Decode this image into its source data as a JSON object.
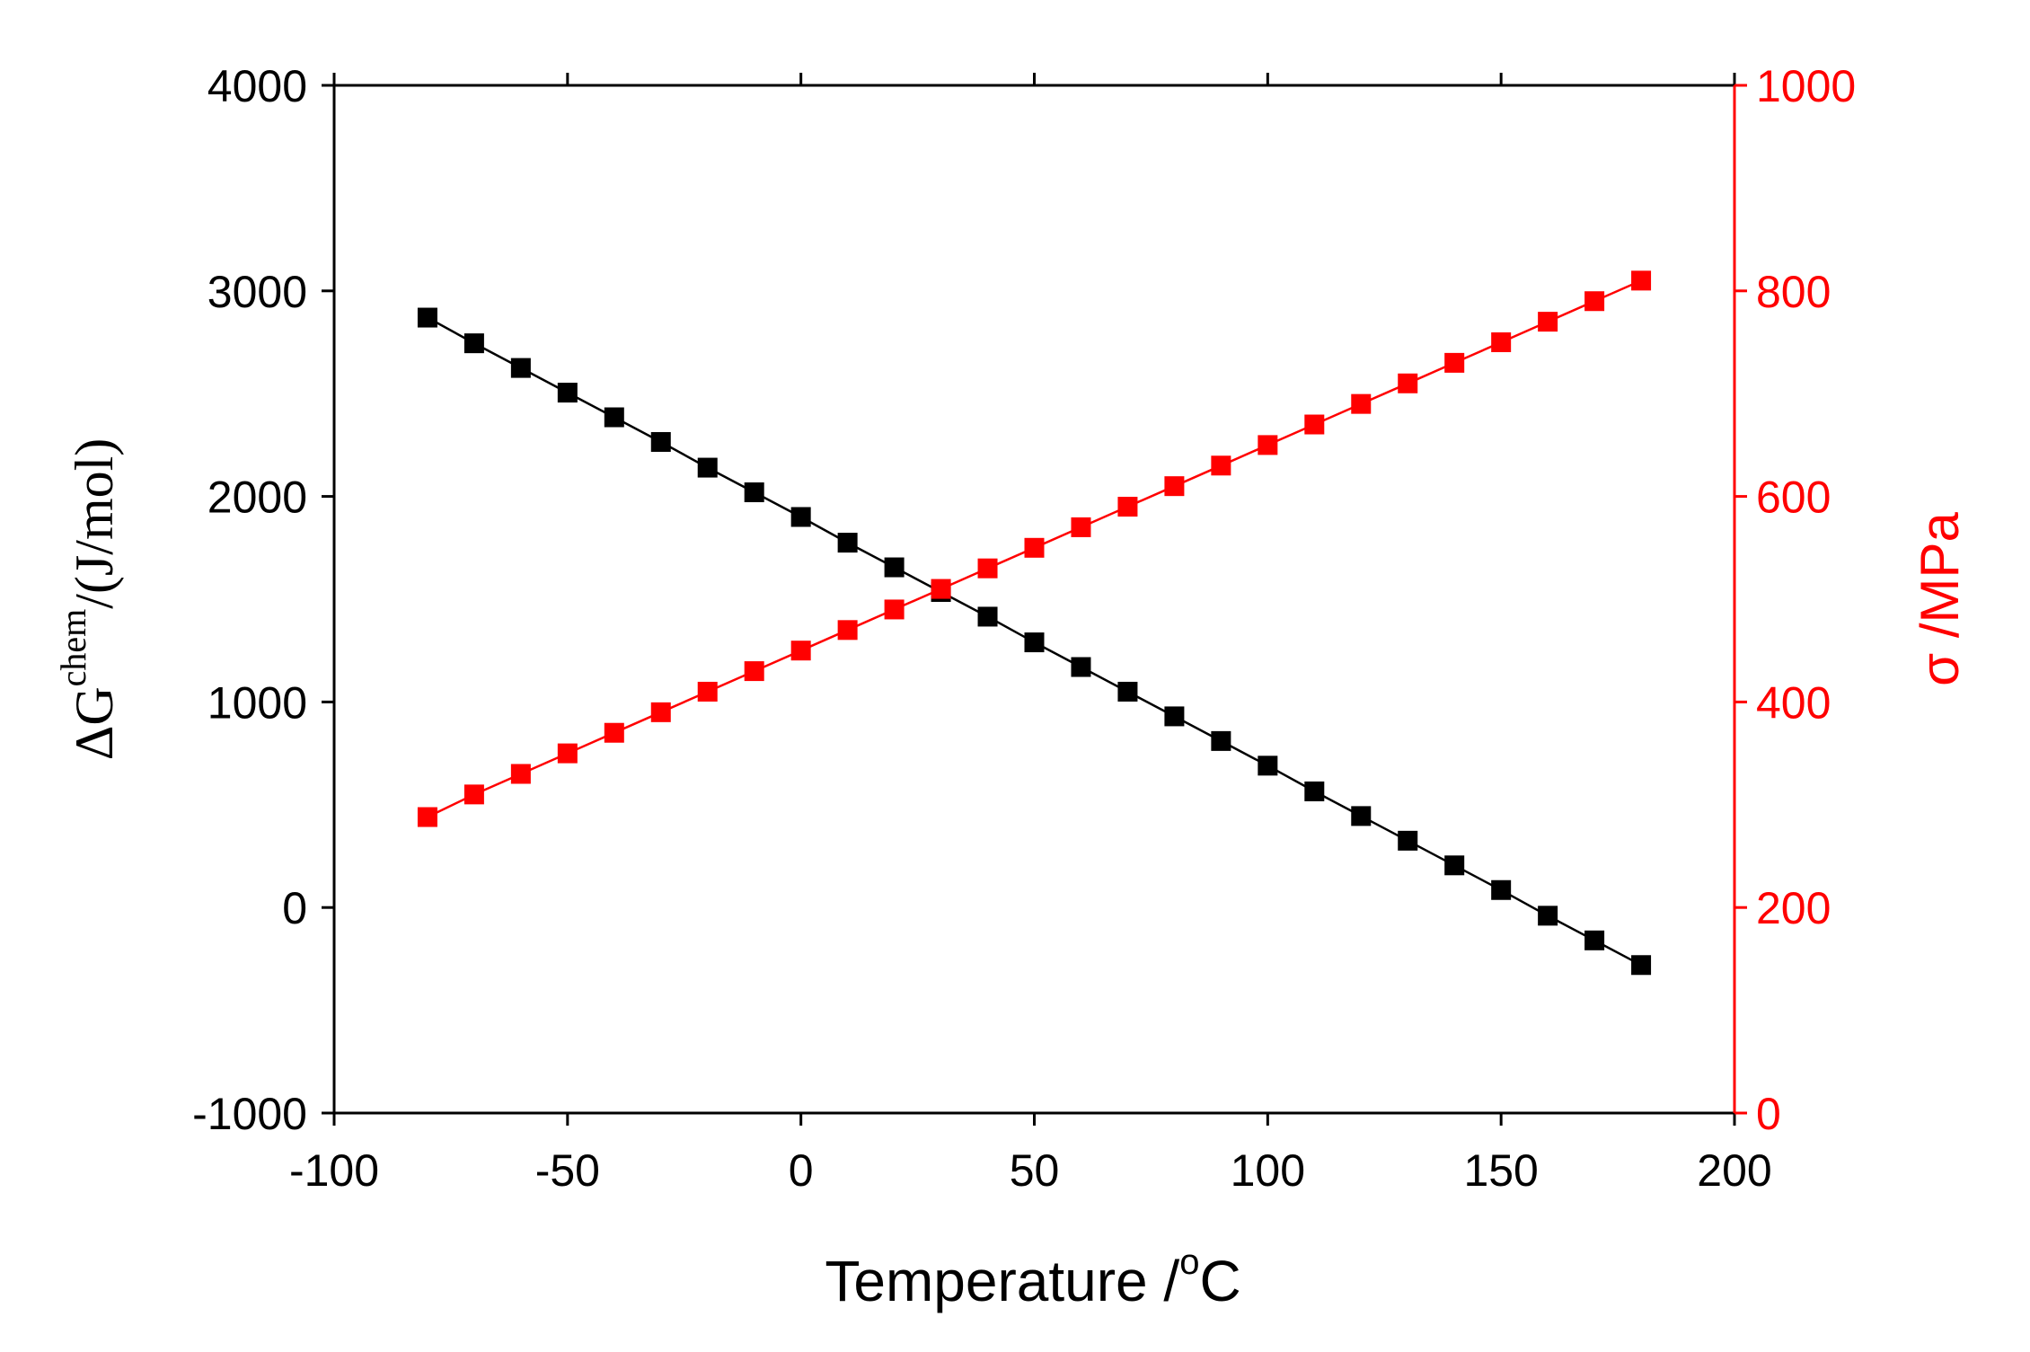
{
  "chart_data": {
    "type": "scatter",
    "x": [
      -80,
      -70,
      -60,
      -50,
      -40,
      -30,
      -20,
      -10,
      0,
      10,
      20,
      30,
      40,
      50,
      60,
      70,
      80,
      90,
      100,
      110,
      120,
      130,
      140,
      150,
      160,
      170,
      180
    ],
    "series": [
      {
        "name": "ΔG chem",
        "axis": "left",
        "color": "#000000",
        "values": [
          2870,
          2745,
          2625,
          2505,
          2385,
          2265,
          2140,
          2020,
          1900,
          1775,
          1655,
          1535,
          1415,
          1290,
          1170,
          1050,
          930,
          810,
          690,
          565,
          445,
          325,
          205,
          85,
          -40,
          -160,
          -280
        ]
      },
      {
        "name": "σ",
        "axis": "right",
        "color": "#ff0000",
        "values": [
          288,
          310,
          330,
          350,
          370,
          390,
          410,
          430,
          450,
          470,
          490,
          510,
          530,
          550,
          570,
          590,
          610,
          630,
          650,
          670,
          690,
          710,
          730,
          750,
          770,
          790,
          810
        ]
      }
    ],
    "xlabel": {
      "main": "Temperature /",
      "sup": "o",
      "unit": "C"
    },
    "ylabel_left": {
      "main": "ΔG",
      "sup": "chem",
      "unit": "/(J/mol)"
    },
    "ylabel_right": "σ /MPa",
    "xlim": [
      -100,
      200
    ],
    "ylim_left": [
      -1000,
      4000
    ],
    "ylim_right": [
      0,
      1000
    ],
    "xticks": [
      "-100",
      "-50",
      "0",
      "50",
      "100",
      "150",
      "200"
    ],
    "yticks_left": [
      "-1000",
      "0",
      "1000",
      "2000",
      "3000",
      "4000"
    ],
    "yticks_right": [
      "0",
      "200",
      "400",
      "600",
      "800",
      "1000"
    ],
    "colors": {
      "left_axis": "#000000",
      "right_axis": "#ff0000"
    },
    "grid": false,
    "legend": "none"
  }
}
